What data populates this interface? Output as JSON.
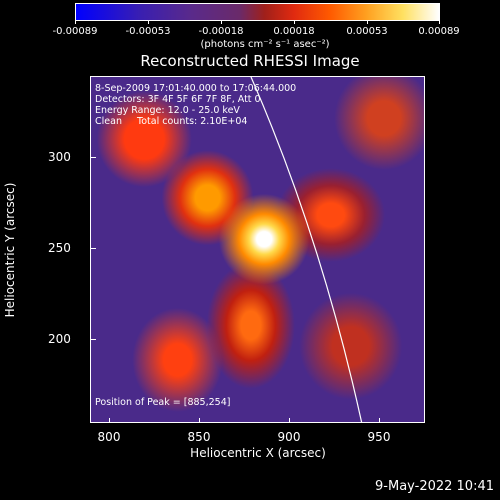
{
  "colorbar": {
    "ticks": [
      "-0.00089",
      "-0.00053",
      "-0.00018",
      "0.00018",
      "0.00053",
      "0.00089"
    ],
    "units": "(photons cm⁻² s⁻¹ asec⁻²)"
  },
  "plot": {
    "title": "Reconstructed RHESSI Image",
    "info_lines": [
      "8-Sep-2009 17:01:40.000 to 17:06:44.000",
      "Detectors: 3F 4F 5F 6F 7F 8F, Att 0",
      "Energy Range: 12.0 - 25.0 keV",
      "Clean     Total counts: 2.10E+04"
    ],
    "peak_label": "Position of Peak = [885,254]",
    "x_axis": {
      "title": "Heliocentric X (arcsec)",
      "ticks": [
        "800",
        "850",
        "900",
        "950"
      ]
    },
    "y_axis": {
      "title": "Heliocentric Y (arcsec)",
      "ticks": [
        "300",
        "250",
        "200"
      ]
    }
  },
  "footer": {
    "timestamp": "9-May-2022 10:41"
  }
}
